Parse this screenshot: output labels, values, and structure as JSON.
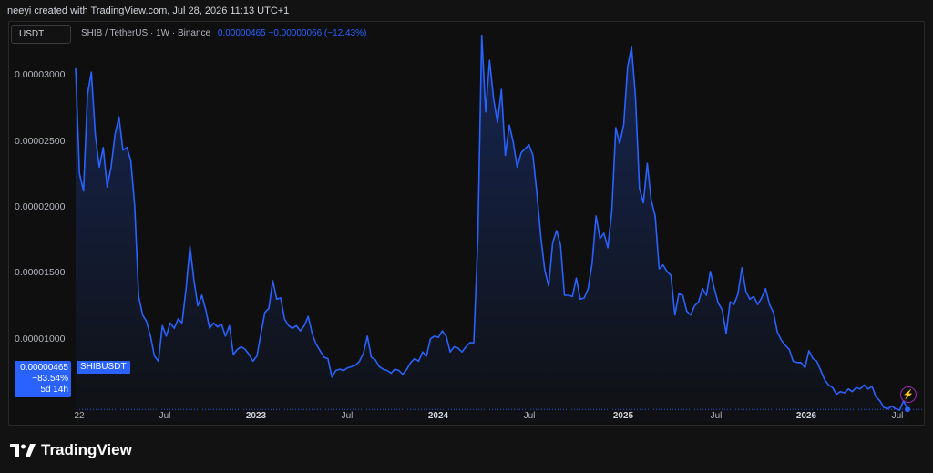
{
  "header": {
    "text": "neeyi created with TradingView.com, Jul 28, 2026 11:13 UTC+1"
  },
  "scale_button": {
    "label": "USDT"
  },
  "symbol": {
    "name": "SHIB / TetherUS · 1W · Binance",
    "price_change": "0.00000465  −0.00000066 (−12.43%)"
  },
  "last_price_label": {
    "price": "0.00000465",
    "change": "−83.54%",
    "countdown": "5d 14h",
    "symbol": "SHIBUSDT"
  },
  "brand": {
    "name": "TradingView",
    "accent": "#2962ff"
  },
  "chart_data": {
    "type": "area",
    "title": "",
    "xlabel": "",
    "ylabel": "",
    "yticks": [
      "0.00003000",
      "0.00002500",
      "0.00002000",
      "0.00001500",
      "0.00001000"
    ],
    "xticks": [
      "22",
      "Jul",
      "2023",
      "Jul",
      "2024",
      "Jul",
      "2025",
      "Jul",
      "2026",
      "Jul"
    ],
    "ylim": [
      3.7e-06,
      3.36e-05
    ],
    "grid": false,
    "series": [
      {
        "values": [
          3.05e-05,
          2.25e-05,
          2.12e-05,
          2.85e-05,
          3.02e-05,
          2.55e-05,
          2.3e-05,
          2.45e-05,
          2.15e-05,
          2.3e-05,
          2.55e-05,
          2.68e-05,
          2.43e-05,
          2.45e-05,
          2.35e-05,
          2e-05,
          1.32e-05,
          1.18e-05,
          1.13e-05,
          1.02e-05,
          8.7e-06,
          8.3e-06,
          1.1e-05,
          1.02e-05,
          1.12e-05,
          1.08e-05,
          1.15e-05,
          1.12e-05,
          1.38e-05,
          1.7e-05,
          1.45e-05,
          1.25e-05,
          1.33e-05,
          1.22e-05,
          1.08e-05,
          1.12e-05,
          1.09e-05,
          1.11e-05,
          1.02e-05,
          1.1e-05,
          8.8e-06,
          9.2e-06,
          9.4e-06,
          9.2e-06,
          8.8e-06,
          8.3e-06,
          8.7e-06,
          1.04e-05,
          1.2e-05,
          1.23e-05,
          1.44e-05,
          1.3e-05,
          1.31e-05,
          1.15e-05,
          1.1e-05,
          1.08e-05,
          1.1e-05,
          1.06e-05,
          1.1e-05,
          1.17e-05,
          1.04e-05,
          9.6e-06,
          9.1e-06,
          8.6e-06,
          8.5e-06,
          7.1e-06,
          7.6e-06,
          7.7e-06,
          7.6e-06,
          7.8e-06,
          7.9e-06,
          8e-06,
          8.3e-06,
          8.9e-06,
          1.02e-05,
          8.6e-06,
          8.4e-06,
          7.9e-06,
          7.7e-06,
          7.6e-06,
          7.4e-06,
          7.7e-06,
          7.6e-06,
          7.3e-06,
          7.7e-06,
          8.2e-06,
          8.5e-06,
          8.3e-06,
          9e-06,
          8.7e-06,
          1e-05,
          1.02e-05,
          1.01e-05,
          1.06e-05,
          1.02e-05,
          9e-06,
          9.4e-06,
          9.3e-06,
          9e-06,
          9.4e-06,
          9.7e-06,
          9.7e-06,
          1.75e-05,
          3.3e-05,
          2.72e-05,
          3.11e-05,
          2.82e-05,
          2.64e-05,
          2.89e-05,
          2.39e-05,
          2.62e-05,
          2.49e-05,
          2.3e-05,
          2.41e-05,
          2.44e-05,
          2.47e-05,
          2.39e-05,
          2.1e-05,
          1.77e-05,
          1.52e-05,
          1.4e-05,
          1.73e-05,
          1.82e-05,
          1.71e-05,
          1.33e-05,
          1.33e-05,
          1.32e-05,
          1.46e-05,
          1.3e-05,
          1.31e-05,
          1.38e-05,
          1.57e-05,
          1.93e-05,
          1.76e-05,
          1.8e-05,
          1.69e-05,
          1.97e-05,
          2.6e-05,
          2.48e-05,
          2.62e-05,
          3.06e-05,
          3.21e-05,
          2.84e-05,
          2.14e-05,
          2.03e-05,
          2.33e-05,
          2.05e-05,
          1.93e-05,
          1.53e-05,
          1.56e-05,
          1.51e-05,
          1.48e-05,
          1.18e-05,
          1.34e-05,
          1.33e-05,
          1.21e-05,
          1.18e-05,
          1.25e-05,
          1.28e-05,
          1.38e-05,
          1.33e-05,
          1.51e-05,
          1.38e-05,
          1.27e-05,
          1.22e-05,
          1.04e-05,
          1.28e-05,
          1.26e-05,
          1.34e-05,
          1.54e-05,
          1.36e-05,
          1.3e-05,
          1.32e-05,
          1.26e-05,
          1.31e-05,
          1.38e-05,
          1.26e-05,
          1.2e-05,
          1.05e-05,
          9.9e-06,
          9.5e-06,
          9.2e-06,
          8.3e-06,
          8.2e-06,
          8.2e-06,
          7.8e-06,
          9.1e-06,
          8.5e-06,
          8.3e-06,
          7.6e-06,
          6.9e-06,
          6.5e-06,
          6.3e-06,
          5.8e-06,
          6e-06,
          5.9e-06,
          6.2e-06,
          6e-06,
          6.3e-06,
          6.2e-06,
          6.5e-06,
          6.2e-06,
          6.4e-06,
          5.6e-06,
          5.3e-06,
          4.8e-06,
          4.7e-06,
          4.9e-06,
          4.7e-06,
          4.6e-06,
          5.3e-06,
          4.65e-06
        ]
      }
    ]
  },
  "colors": {
    "line": "#2962ff",
    "background": "#0f0f0f",
    "tick_text": "#b2b5be"
  }
}
